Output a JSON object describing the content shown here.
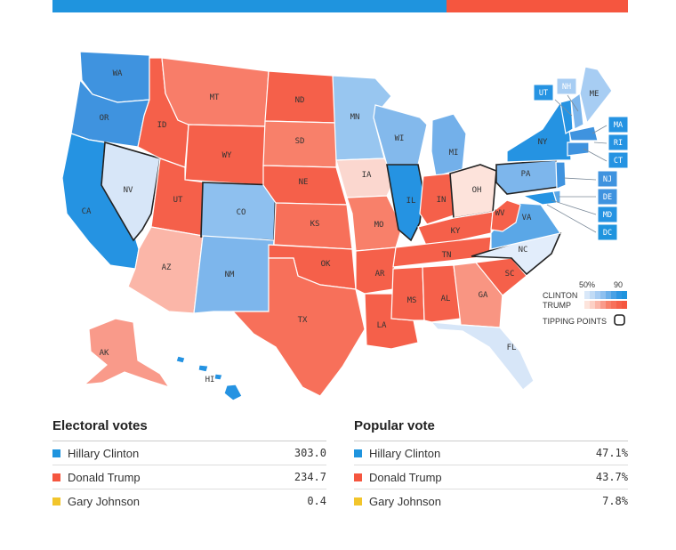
{
  "colors": {
    "clinton": "#1f94de",
    "trump": "#f5563f",
    "johnson": "#f2c52b"
  },
  "bar": {
    "clinton_share": 0.684,
    "trump_share": 0.316
  },
  "legend": {
    "pct_low": "50%",
    "pct_high": "90",
    "clinton_label": "CLINTON",
    "trump_label": "TRUMP",
    "tipping_label": "TIPPING POINTS"
  },
  "small_states": [
    "UT",
    "NH",
    "MA",
    "RI",
    "CT",
    "NJ",
    "DE",
    "MD",
    "DC"
  ],
  "states": {
    "WA": "WA",
    "OR": "OR",
    "CA": "CA",
    "NV": "NV",
    "ID": "ID",
    "MT": "MT",
    "WY": "WY",
    "UT": "UT",
    "AZ": "AZ",
    "CO": "CO",
    "NM": "NM",
    "ND": "ND",
    "SD": "SD",
    "NE": "NE",
    "KS": "KS",
    "OK": "OK",
    "TX": "TX",
    "MN": "MN",
    "IA": "IA",
    "MO": "MO",
    "AR": "AR",
    "LA": "LA",
    "WI": "WI",
    "IL": "IL",
    "MI": "MI",
    "IN": "IN",
    "OH": "OH",
    "KY": "KY",
    "TN": "TN",
    "MS": "MS",
    "AL": "AL",
    "GA": "GA",
    "FL": "FL",
    "SC": "SC",
    "NC": "NC",
    "VA": "VA",
    "WV": "WV",
    "PA": "PA",
    "NY": "NY",
    "ME": "ME",
    "AK": "AK",
    "HI": "HI"
  },
  "electoral": {
    "title": "Electoral votes",
    "rows": [
      {
        "name": "Hillary Clinton",
        "value": "303.0",
        "color": "#1f94de"
      },
      {
        "name": "Donald Trump",
        "value": "234.7",
        "color": "#f5563f"
      },
      {
        "name": "Gary Johnson",
        "value": "0.4",
        "color": "#f2c52b"
      }
    ]
  },
  "popular": {
    "title": "Popular vote",
    "rows": [
      {
        "name": "Hillary Clinton",
        "value": "47.1%",
        "color": "#1f94de"
      },
      {
        "name": "Donald Trump",
        "value": "43.7%",
        "color": "#f5563f"
      },
      {
        "name": "Gary Johnson",
        "value": "7.8%",
        "color": "#f2c52b"
      }
    ]
  }
}
